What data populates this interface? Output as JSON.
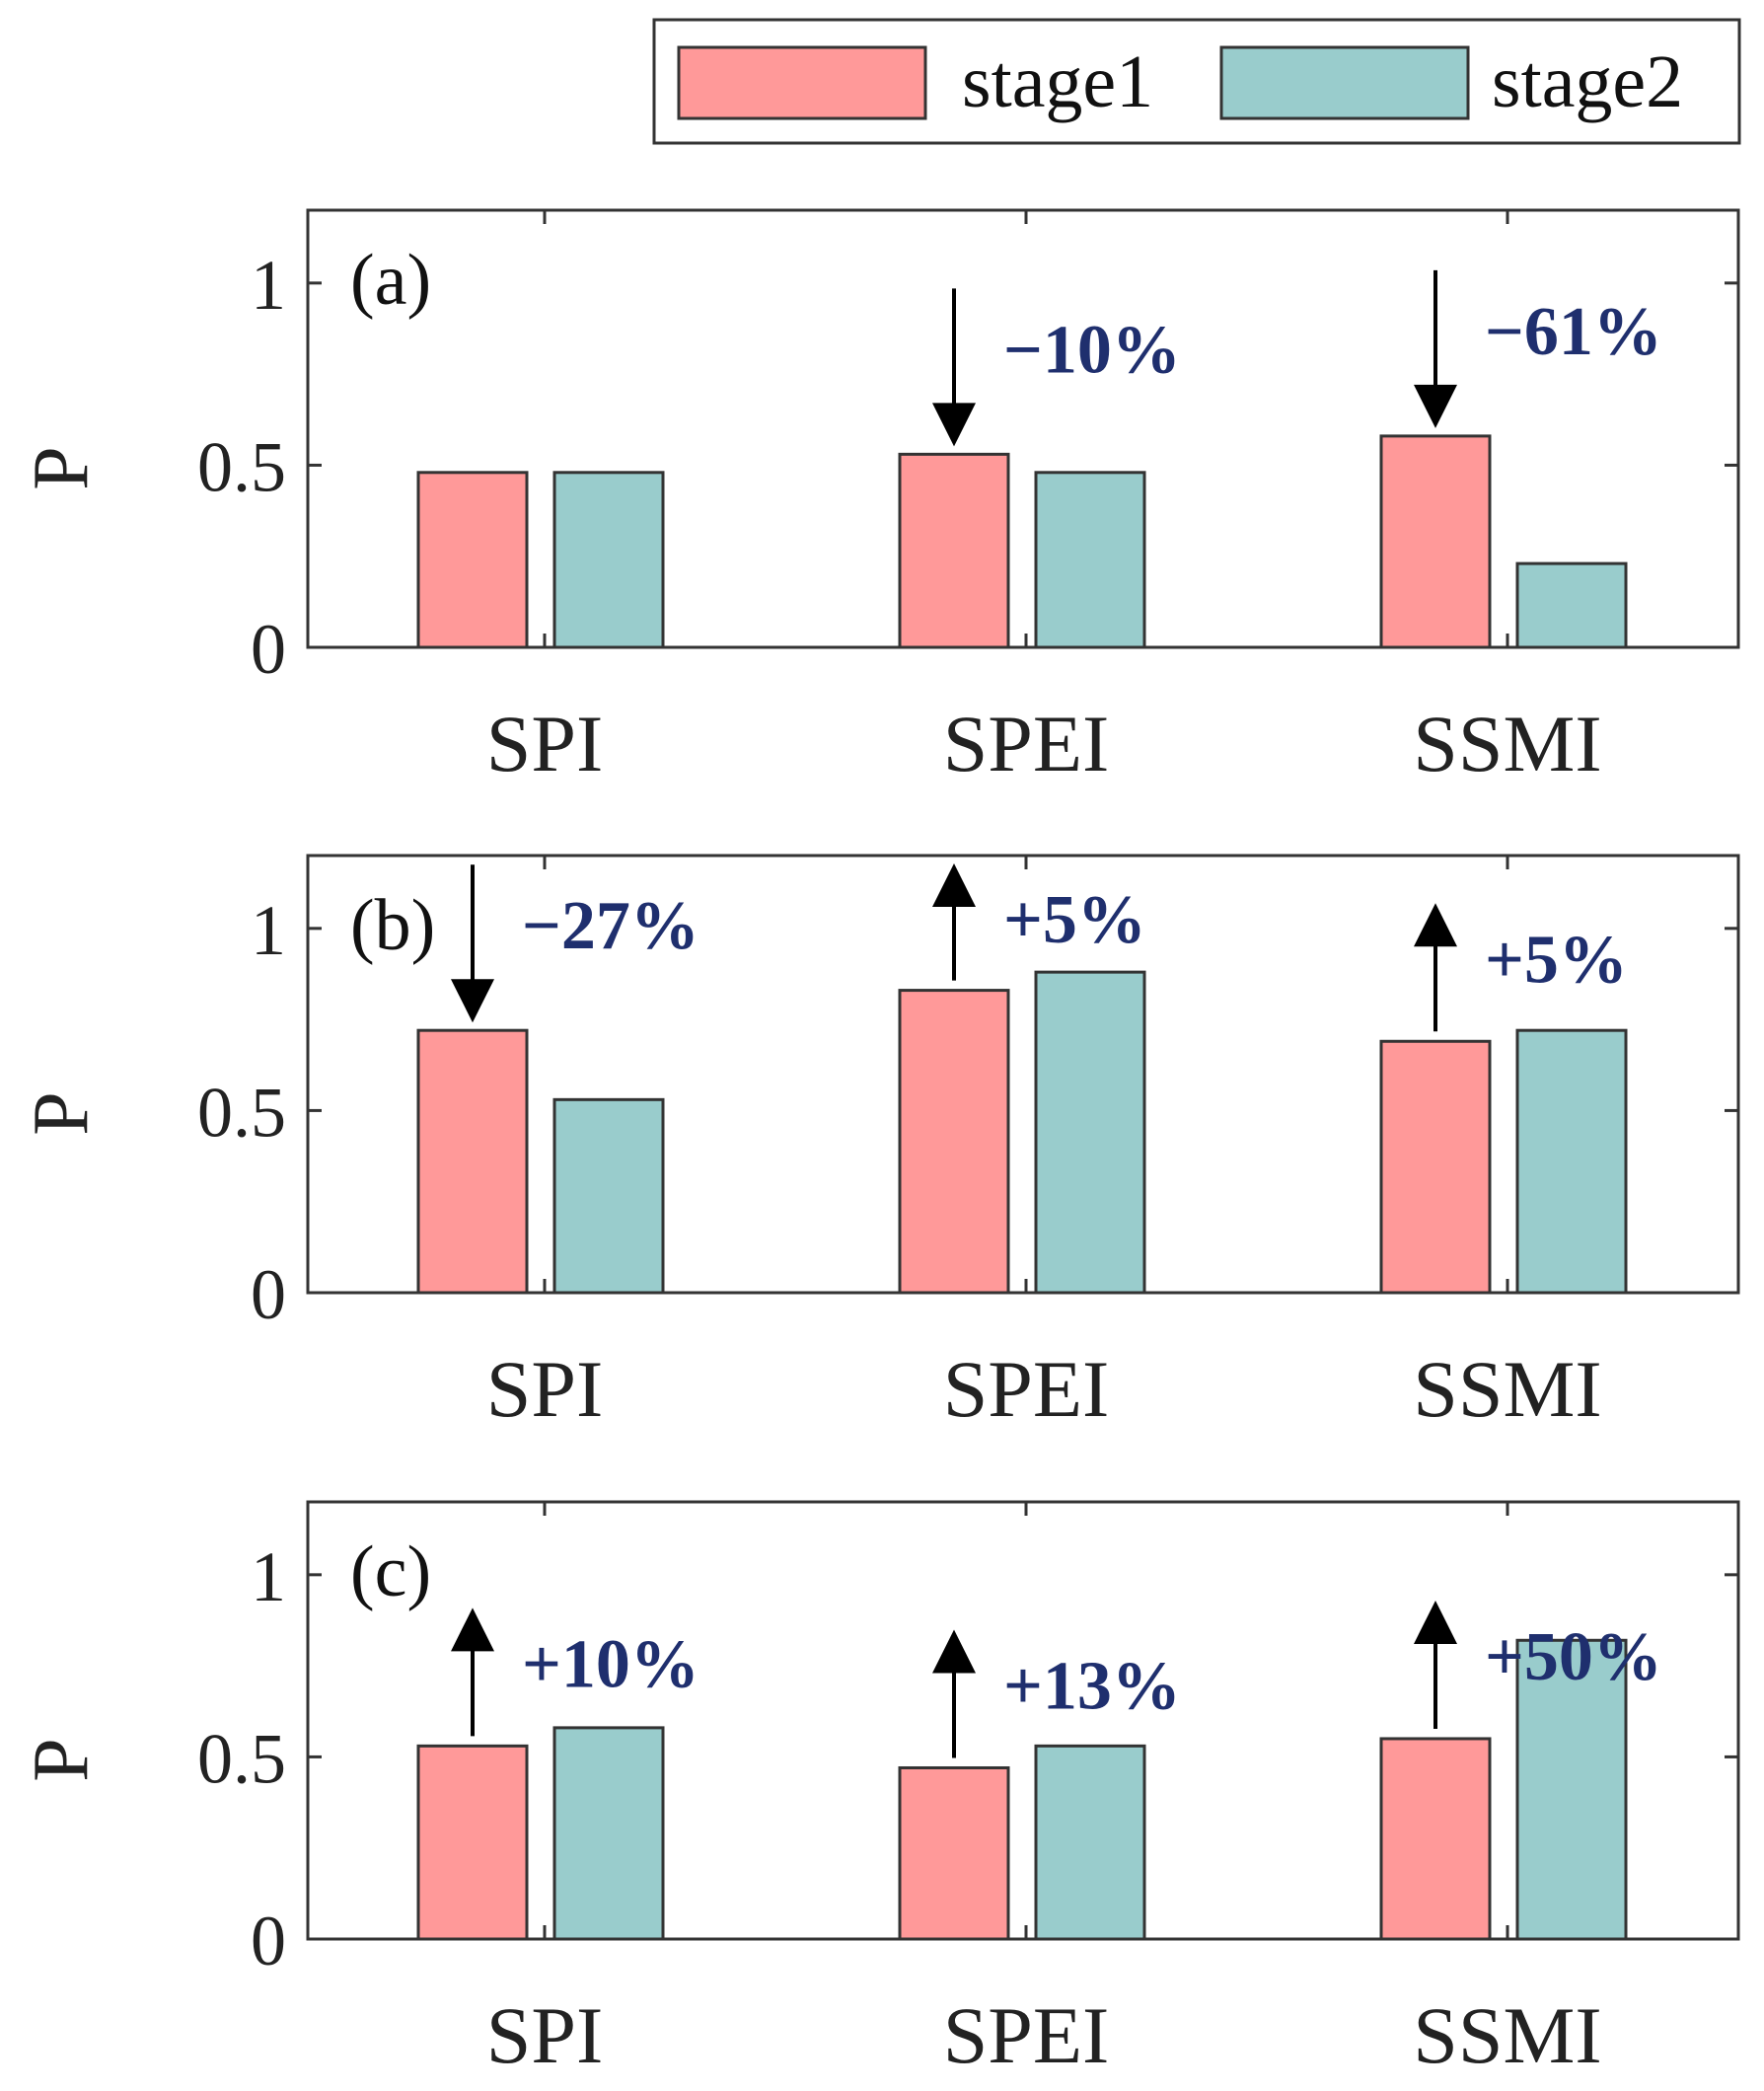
{
  "legend": {
    "items": [
      {
        "label": "stage1",
        "color": "#FF9999"
      },
      {
        "label": "stage2",
        "color": "#99CCCC"
      }
    ]
  },
  "colors": {
    "annotation": "#1F2F6E",
    "edge": "#333333"
  },
  "chart_data": [
    {
      "type": "bar",
      "panel_label": "(a)",
      "categories": [
        "SPI",
        "SPEI",
        "SSMI"
      ],
      "series": [
        {
          "name": "stage1",
          "values": [
            0.48,
            0.53,
            0.58
          ]
        },
        {
          "name": "stage2",
          "values": [
            0.48,
            0.48,
            0.23
          ]
        }
      ],
      "ylabel": "P",
      "ylim": [
        0,
        1.2
      ],
      "yticks": [
        0,
        0.5,
        1
      ],
      "ytick_labels": [
        "0",
        "0.5",
        "1"
      ],
      "annotations": [
        {
          "category": "SPEI",
          "text": "−10%",
          "direction": "down"
        },
        {
          "category": "SSMI",
          "text": "−61%",
          "direction": "down"
        }
      ]
    },
    {
      "type": "bar",
      "panel_label": "(b)",
      "categories": [
        "SPI",
        "SPEI",
        "SSMI"
      ],
      "series": [
        {
          "name": "stage1",
          "values": [
            0.72,
            0.83,
            0.69
          ]
        },
        {
          "name": "stage2",
          "values": [
            0.53,
            0.88,
            0.72
          ]
        }
      ],
      "ylabel": "P",
      "ylim": [
        0,
        1.2
      ],
      "yticks": [
        0,
        0.5,
        1
      ],
      "ytick_labels": [
        "0",
        "0.5",
        "1"
      ],
      "annotations": [
        {
          "category": "SPI",
          "text": "−27%",
          "direction": "down"
        },
        {
          "category": "SPEI",
          "text": "+5%",
          "direction": "up"
        },
        {
          "category": "SSMI",
          "text": "+5%",
          "direction": "up"
        }
      ]
    },
    {
      "type": "bar",
      "panel_label": "(c)",
      "categories": [
        "SPI",
        "SPEI",
        "SSMI"
      ],
      "series": [
        {
          "name": "stage1",
          "values": [
            0.53,
            0.47,
            0.55
          ]
        },
        {
          "name": "stage2",
          "values": [
            0.58,
            0.53,
            0.82
          ]
        }
      ],
      "ylabel": "P",
      "ylim": [
        0,
        1.2
      ],
      "yticks": [
        0,
        0.5,
        1
      ],
      "ytick_labels": [
        "0",
        "0.5",
        "1"
      ],
      "annotations": [
        {
          "category": "SPI",
          "text": "+10%",
          "direction": "up"
        },
        {
          "category": "SPEI",
          "text": "+13%",
          "direction": "up"
        },
        {
          "category": "SSMI",
          "text": "+50%",
          "direction": "up"
        }
      ]
    }
  ]
}
